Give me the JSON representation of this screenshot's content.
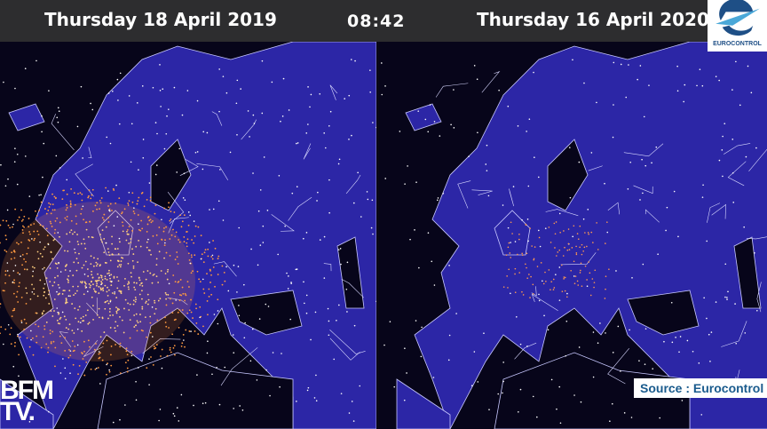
{
  "header": {
    "left_date": "Thursday 18 April 2019",
    "clock": "08:42",
    "right_date": "Thursday 16 April 2020"
  },
  "logo": {
    "name": "eurocontrol-logo",
    "text": "EUROCONTROL"
  },
  "source_label": "Source : Eurocontrol",
  "channel_logo": {
    "line1": "BFM",
    "line2": "TV."
  },
  "maps": [
    {
      "id": "left",
      "traffic_density": "high"
    },
    {
      "id": "right",
      "traffic_density": "low"
    }
  ],
  "colors": {
    "land": "#2c26a6",
    "sea": "#07051a",
    "flight_dot": "#ffb060",
    "header_bg": "#2d2d2f",
    "source_text": "#1a5b8d"
  }
}
